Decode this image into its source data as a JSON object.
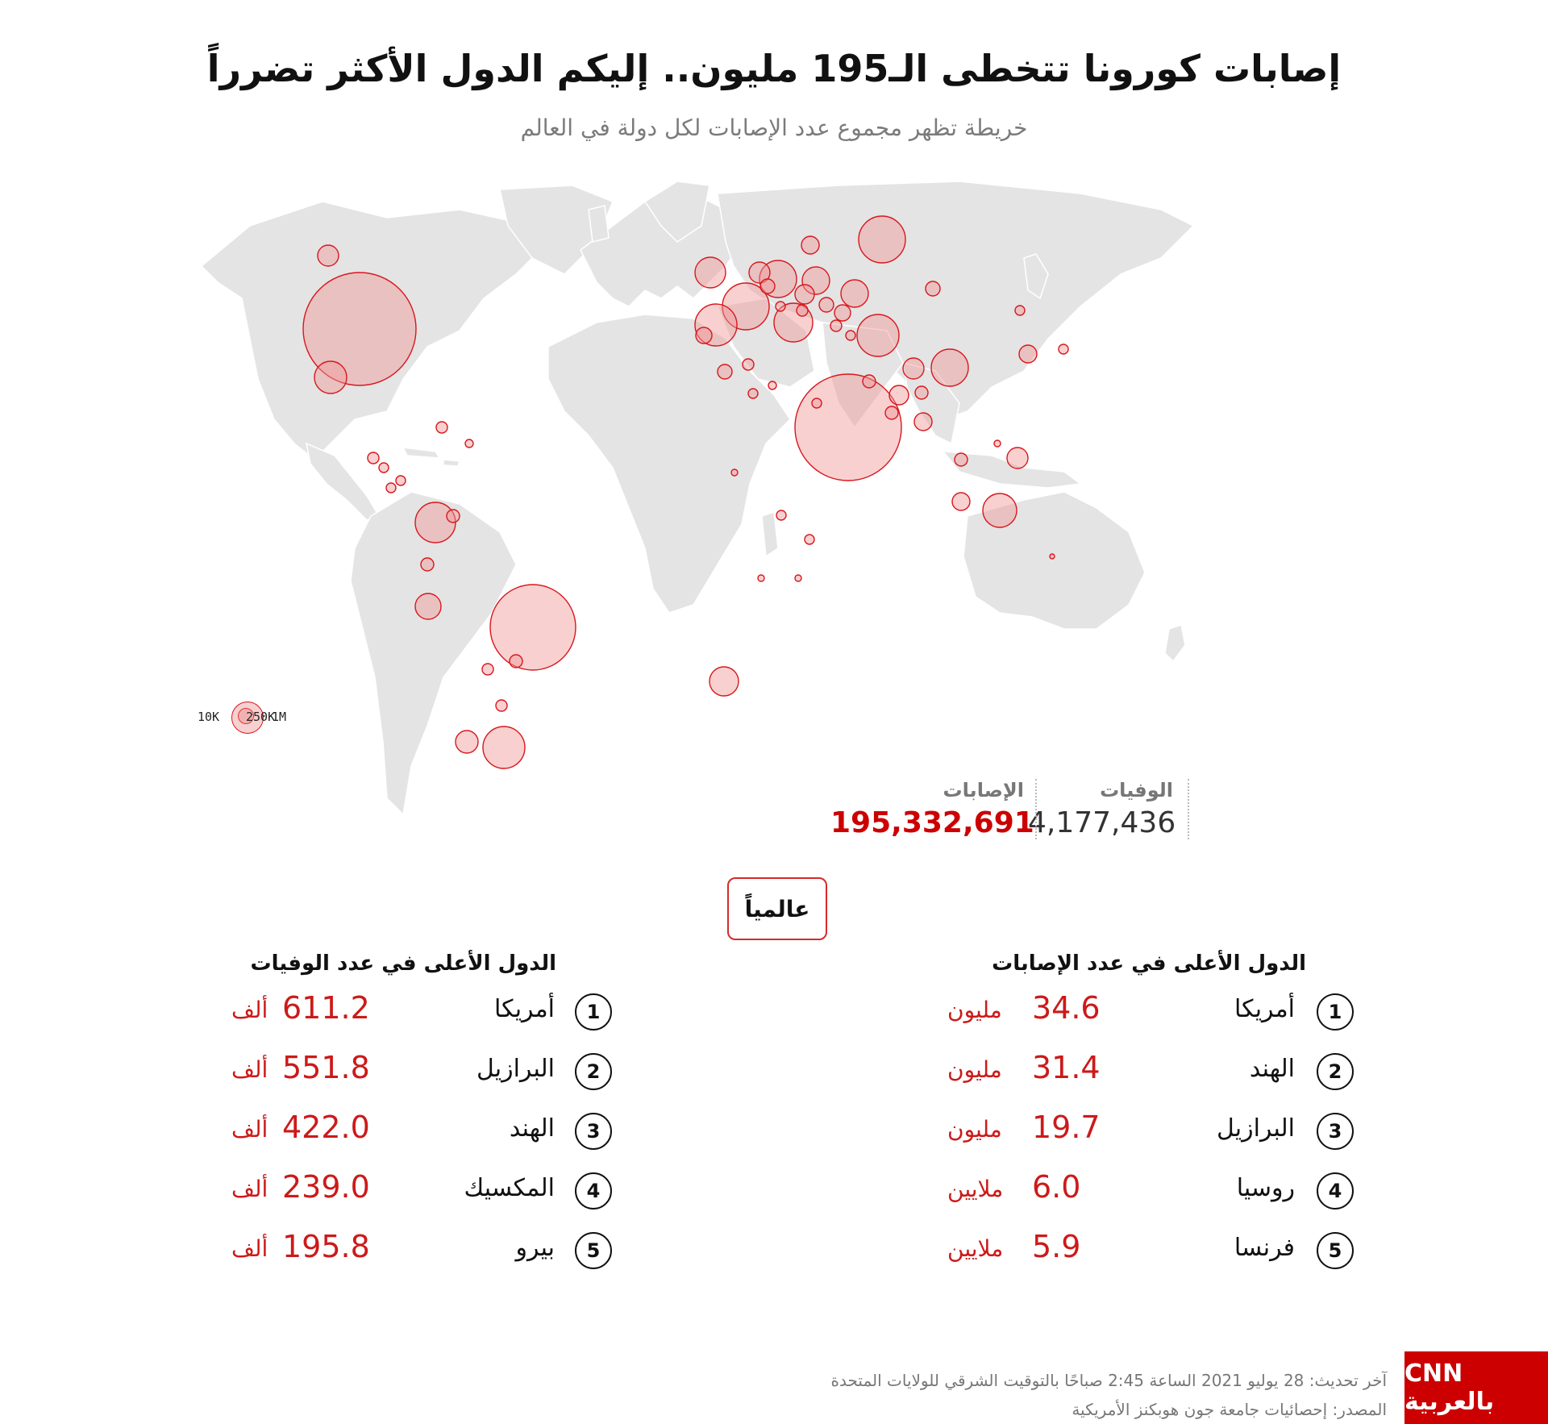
{
  "header": {
    "title": "إصابات كورونا تتخطى الـ195 مليون.. إليكم الدول الأكثر تضرراً",
    "subtitle": "خريطة تظهر مجموع عدد الإصابات لكل دولة في العالم"
  },
  "legend": {
    "small": "10K",
    "mid": "250K",
    "large": "1M"
  },
  "totals": {
    "deaths_label": "الوفيات",
    "deaths_value": "4,177,436",
    "cases_label": "الإصابات",
    "cases_value": "195,332,691"
  },
  "scope_button": "عالمياً",
  "top_cases": {
    "title": "الدول الأعلى في عدد الإصابات",
    "rows": [
      {
        "rank": "1",
        "country": "أمريكا",
        "value": "34.6",
        "unit": "مليون"
      },
      {
        "rank": "2",
        "country": "الهند",
        "value": "31.4",
        "unit": "مليون"
      },
      {
        "rank": "3",
        "country": "البرازيل",
        "value": "19.7",
        "unit": "مليون"
      },
      {
        "rank": "4",
        "country": "روسيا",
        "value": "6.0",
        "unit": "ملايين"
      },
      {
        "rank": "5",
        "country": "فرنسا",
        "value": "5.9",
        "unit": "ملايين"
      }
    ]
  },
  "top_deaths": {
    "title": "الدول الأعلى في عدد الوفيات",
    "rows": [
      {
        "rank": "1",
        "country": "أمريكا",
        "value": "611.2",
        "unit": "ألف"
      },
      {
        "rank": "2",
        "country": "البرازيل",
        "value": "551.8",
        "unit": "ألف"
      },
      {
        "rank": "3",
        "country": "الهند",
        "value": "422.0",
        "unit": "ألف"
      },
      {
        "rank": "4",
        "country": "المكسيك",
        "value": "239.0",
        "unit": "ألف"
      },
      {
        "rank": "5",
        "country": "بيرو",
        "value": "195.8",
        "unit": "ألف"
      }
    ]
  },
  "footer": {
    "updated": "آخر تحديث: 28 يوليو 2021 الساعة 2:45 صباحًا بالتوقيت الشرقي للولايات المتحدة",
    "source": "المصدر: إحصائيات جامعة جون هوبكنز الأمريكية"
  },
  "logo_text": "CNN بالعربية",
  "colors": {
    "accent": "#cc0000",
    "land": "#e4e4e4",
    "bubble_fill": "#f0a8a8",
    "bubble_stroke": "#d8171d"
  }
}
